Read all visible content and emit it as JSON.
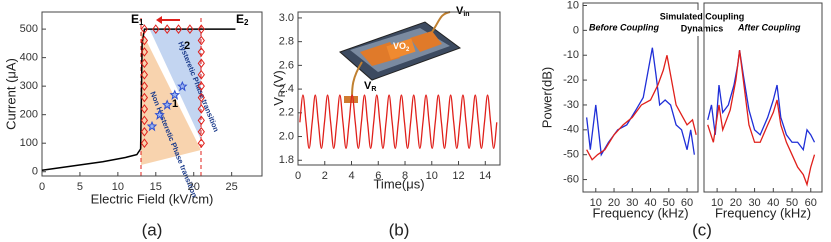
{
  "chart_data": [
    {
      "type": "scatter",
      "panel_label": "(a)",
      "xlabel": "Electric Field (kV/cm)",
      "ylabel": "Current (μA)",
      "xlim": [
        0,
        29
      ],
      "ylim": [
        -15,
        560
      ],
      "xticks": [
        0,
        5,
        10,
        15,
        20,
        25
      ],
      "yticks": [
        0,
        100,
        200,
        300,
        400,
        500
      ],
      "annotations": {
        "e1": {
          "text": "E",
          "sub": "1"
        },
        "e2": {
          "text": "E",
          "sub": "2"
        },
        "one": "1",
        "two": "2",
        "hysteretic": "Hysteretic Phase transition",
        "non_hysteretic": "Non Hysteretic Phase transition"
      },
      "series": [
        {
          "color": "#000000",
          "marker": "none",
          "x": [
            0,
            4,
            8,
            11,
            12.5,
            13,
            13.2,
            13.5,
            25.5
          ],
          "values": [
            5,
            20,
            35,
            50,
            60,
            80,
            450,
            500,
            500
          ]
        },
        {
          "color": "#e0201b",
          "marker": "diamond",
          "x": [
            13.5,
            13.5,
            13.5,
            13.5,
            13.5,
            13.5,
            13.5,
            13.5,
            13.5,
            13.5,
            13.5,
            15,
            16.5,
            18,
            19.5,
            21,
            21,
            21,
            21,
            21,
            21,
            21,
            21,
            21,
            21,
            21
          ],
          "values": [
            100,
            140,
            180,
            220,
            260,
            300,
            340,
            380,
            420,
            460,
            500,
            500,
            500,
            500,
            500,
            500,
            460,
            420,
            380,
            340,
            300,
            260,
            220,
            180,
            140,
            100
          ]
        },
        {
          "color": "#2f4fd0",
          "marker": "star",
          "x": [
            14.5,
            15.5,
            16.5,
            17.5,
            18.5
          ],
          "values": [
            160,
            200,
            235,
            270,
            300
          ]
        }
      ]
    },
    {
      "type": "line",
      "panel_label": "(b)",
      "xlabel": "Time(μs)",
      "ylabel": [
        "V",
        "R",
        "(V)"
      ],
      "xlim": [
        0,
        15.1
      ],
      "ylim": [
        1.76,
        3.05
      ],
      "xticks": [
        0,
        2,
        4,
        6,
        8,
        10,
        12,
        14
      ],
      "yticks": [
        1.8,
        {
          "value": 2,
          "label": "2.0"
        },
        2.2,
        2.4,
        2.6,
        2.8,
        {
          "value": 3,
          "label": "3.0"
        }
      ],
      "inset_labels": [
        {
          "text": "V",
          "sub": "in"
        },
        {
          "text": "VO",
          "sub": "2"
        },
        {
          "text": "V",
          "sub": "R"
        }
      ],
      "series": [
        {
          "color": "#e0201b",
          "marker": "none",
          "x": [
            0.14,
            0.37,
            0.6,
            0.83,
            1.06,
            1.29,
            1.52,
            1.75,
            1.98,
            2.21,
            2.44,
            2.67,
            2.9,
            3.13,
            3.36,
            3.59,
            3.82,
            4.05,
            4.28,
            4.51,
            4.74,
            4.97,
            5.2,
            5.43,
            5.66,
            5.89,
            6.12,
            6.35,
            6.58,
            6.81,
            7.04,
            7.27,
            7.5,
            7.73,
            7.96,
            8.19,
            8.42,
            8.65,
            8.88,
            9.11,
            9.34,
            9.57,
            9.8,
            10.03,
            10.26,
            10.49,
            10.72,
            10.95,
            11.18,
            11.41,
            11.64,
            11.87,
            12.1,
            12.33,
            12.56,
            12.79,
            13.02,
            13.25,
            13.48,
            13.71,
            13.94,
            14.17,
            14.4,
            14.63,
            14.86
          ],
          "values": [
            2.12,
            2.35,
            2.12,
            1.9,
            2.12,
            2.35,
            2.12,
            1.9,
            2.12,
            2.35,
            2.12,
            1.9,
            2.12,
            2.35,
            2.12,
            1.9,
            2.12,
            2.35,
            2.12,
            1.9,
            2.12,
            2.35,
            2.12,
            1.9,
            2.12,
            2.35,
            2.12,
            1.9,
            2.12,
            2.35,
            2.12,
            1.9,
            2.12,
            2.35,
            2.12,
            1.9,
            2.12,
            2.35,
            2.12,
            1.9,
            2.12,
            2.35,
            2.12,
            1.9,
            2.12,
            2.35,
            2.12,
            1.9,
            2.12,
            2.35,
            2.12,
            1.9,
            2.12,
            2.35,
            2.12,
            1.9,
            2.12,
            2.35,
            2.12,
            1.9,
            2.12,
            2.35,
            2.12,
            1.9,
            2.12
          ]
        }
      ]
    },
    {
      "type": "line",
      "panel_label": "(c)",
      "xlabel": "Frequency (kHz)",
      "ylabel": "Power(dB)",
      "title": "Before Coupling",
      "xlim": [
        3,
        66
      ],
      "ylim": [
        -65,
        11
      ],
      "xticks": [
        10,
        20,
        30,
        40,
        50,
        60
      ],
      "yticks": [
        10,
        0,
        -10,
        -20,
        -30,
        -40,
        -50,
        -60
      ],
      "annotation": [
        "Simulated Coupling",
        "Dynamics"
      ],
      "series": [
        {
          "color": "#1f2fd8",
          "marker": "none",
          "x": [
            5,
            7,
            10,
            13,
            17,
            22,
            27,
            32,
            36,
            39,
            41,
            43,
            45,
            48,
            51,
            54,
            57,
            60,
            62,
            64
          ],
          "values": [
            -35,
            -48,
            -30,
            -50,
            -45,
            -40,
            -38,
            -32,
            -27,
            -15,
            -7,
            -18,
            -30,
            -28,
            -30,
            -38,
            -40,
            -48,
            -40,
            -50
          ]
        },
        {
          "color": "#e0201b",
          "marker": "none",
          "x": [
            5,
            8,
            11,
            15,
            20,
            25,
            30,
            35,
            40,
            44,
            47,
            49,
            51,
            54,
            57,
            60,
            63,
            65
          ],
          "values": [
            -48,
            -52,
            -50,
            -48,
            -42,
            -38,
            -35,
            -30,
            -28,
            -22,
            -16,
            -10,
            -18,
            -30,
            -34,
            -38,
            -36,
            -42
          ]
        }
      ]
    },
    {
      "type": "line",
      "xlabel": "Frequency (kHz)",
      "title": "After Coupling",
      "xlim": [
        3,
        66
      ],
      "ylim": [
        -65,
        11
      ],
      "xticks": [
        10,
        20,
        30,
        40,
        50,
        60
      ],
      "series": [
        {
          "color": "#1f2fd8",
          "marker": "none",
          "x": [
            5,
            7,
            9,
            11,
            13,
            16,
            19,
            21,
            22,
            24,
            27,
            30,
            33,
            37,
            40,
            42,
            44,
            47,
            50,
            53,
            56,
            58,
            60,
            62
          ],
          "values": [
            -36,
            -30,
            -42,
            -22,
            -33,
            -30,
            -22,
            -14,
            -8,
            -18,
            -32,
            -40,
            -42,
            -35,
            -28,
            -22,
            -35,
            -42,
            -45,
            -45,
            -48,
            -40,
            -42,
            -45
          ]
        },
        {
          "color": "#e0201b",
          "marker": "none",
          "x": [
            5,
            8,
            11,
            13,
            17,
            20,
            22,
            24,
            27,
            30,
            33,
            37,
            40,
            42,
            44,
            47,
            50,
            53,
            56,
            58,
            60,
            62
          ],
          "values": [
            -38,
            -45,
            -30,
            -40,
            -32,
            -20,
            -8,
            -20,
            -38,
            -45,
            -45,
            -38,
            -33,
            -28,
            -38,
            -45,
            -50,
            -55,
            -58,
            -62,
            -55,
            -50
          ]
        }
      ]
    }
  ]
}
